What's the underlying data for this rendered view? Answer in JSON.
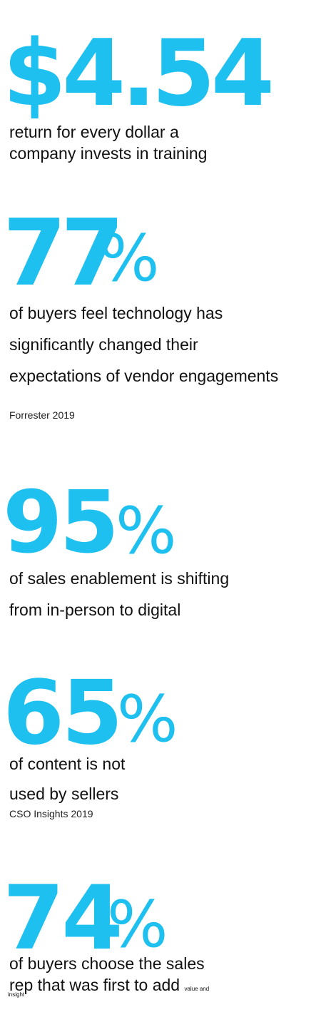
{
  "accent_color": "#1ec0f0",
  "stats": [
    {
      "value": "$4.54",
      "caption_lines": [
        "return for every dollar a",
        "company invests in training"
      ]
    },
    {
      "value": "77",
      "unit": "%",
      "caption_lines": [
        "of buyers feel technology has",
        "significantly changed their",
        "expectations of vendor engagements"
      ],
      "source": "Forrester 2019"
    },
    {
      "value": "95",
      "unit": "%",
      "caption_lines": [
        "of sales enablement is shifting",
        "from in-person to digital"
      ]
    },
    {
      "value": "65",
      "unit": "%",
      "caption_lines": [
        "of content is not",
        "used by sellers"
      ],
      "source": "CSO Insights 2019"
    },
    {
      "value": "74",
      "unit": "%",
      "caption_lines": [
        "of buyers choose the sales",
        "rep that was first to add"
      ],
      "caption_small_inline": "value and",
      "caption_small_wrap": "insight"
    }
  ]
}
